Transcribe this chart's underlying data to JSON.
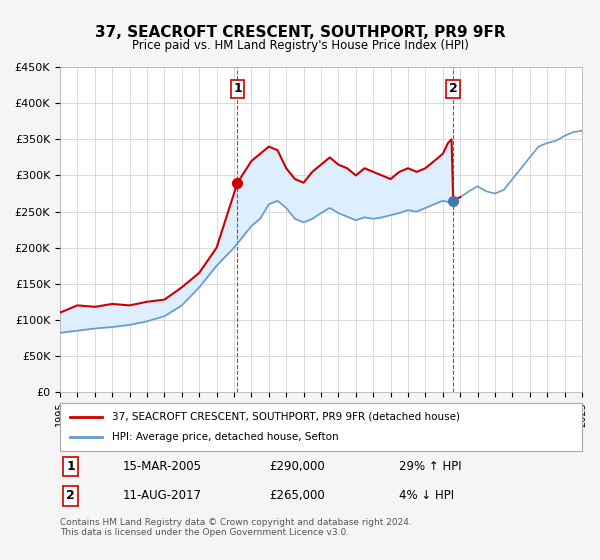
{
  "title": "37, SEACROFT CRESCENT, SOUTHPORT, PR9 9FR",
  "subtitle": "Price paid vs. HM Land Registry's House Price Index (HPI)",
  "legend_line1": "37, SEACROFT CRESCENT, SOUTHPORT, PR9 9FR (detached house)",
  "legend_line2": "HPI: Average price, detached house, Sefton",
  "sale1_date": "15-MAR-2005",
  "sale1_price": 290000,
  "sale1_hpi": "29% ↑ HPI",
  "sale2_date": "11-AUG-2017",
  "sale2_price": 265000,
  "sale2_hpi": "4% ↓ HPI",
  "footer": "Contains HM Land Registry data © Crown copyright and database right 2024.\nThis data is licensed under the Open Government Licence v3.0.",
  "red_color": "#cc0000",
  "blue_color": "#6699cc",
  "shade_color": "#ddeeff",
  "grid_color": "#cccccc",
  "background_color": "#f5f5f5",
  "plot_bg_color": "#ffffff",
  "sale1_x": 2005.2,
  "sale1_marker_price": 290000,
  "sale2_x": 2017.6,
  "sale2_marker_price": 265000,
  "ylim": [
    0,
    450000
  ],
  "xlim_start": 1995,
  "xlim_end": 2025
}
